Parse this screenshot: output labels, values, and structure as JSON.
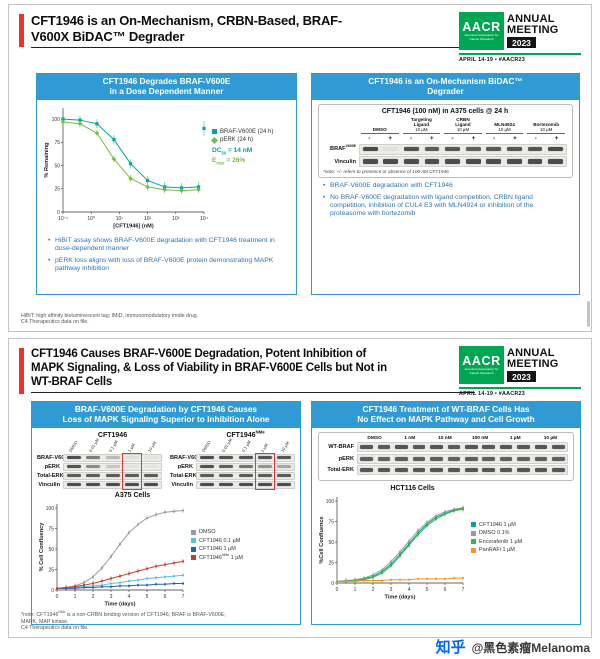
{
  "logo": {
    "acronym": "AACR",
    "org": "American Association for Cancer Research",
    "annual": "ANNUAL",
    "meeting": "MEETING",
    "year": "2023",
    "date": "APRIL 14-19 • #AACR23"
  },
  "watermark": {
    "brand": "知乎",
    "handle": "@黑色素瘤Melanoma"
  },
  "slide1": {
    "title_lines": [
      "CFT1946 is an On-Mechanism, CRBN-Based, BRAF-",
      "V600X BiDAC™ Degrader"
    ],
    "left_panel": {
      "header_lines": [
        "CFT1946 Degrades BRAF-V600E",
        "in a Dose Dependent Manner"
      ],
      "bullets": [
        "HiBiT assay shows BRAF-V600E degradation with CFT1946 treatment in dose-dependent manner",
        "pERK loss aligns with loss of BRAF-V600E protein demonstrating MAPK pathway inhibition"
      ]
    },
    "right_panel": {
      "header_lines": [
        "CFT1946 is an On-Mechanism BiDAC™",
        "Degrader"
      ],
      "blot_title": "CFT1946 (100 nM) in A375 cells @ 24 h",
      "note": "*note: +/- refers to presence or absence of 100 nM CFT1946",
      "bullets": [
        "BRAF-V600E degradation with CFT1946",
        "No BRAF-V600E degradation with ligand competition, CRBN ligand competition, inhibition of CUL4 E3 with MLN4924 or inhibition of the proteasome with bortezomib"
      ]
    },
    "footnote_lines": [
      "HiBiT: high affinity bioluminescent tag; IMiD, immunomodulatory imide drug.",
      "C4 Therapeutics data on file."
    ]
  },
  "slide2": {
    "title_lines": [
      "CFT1946 Causes BRAF-V600E Degradation, Potent Inhibition of",
      "MAPK Signaling, & Loss of Viability in BRAF-V600E Cells but Not in",
      "WT-BRAF Cells"
    ],
    "left_panel": {
      "header_lines": [
        "BRAF-V600E Degradation by CFT1946 Causes",
        "Loss of MAPK Signaling Superior to Inhibition Alone"
      ],
      "chart_title": "A375 Cells"
    },
    "right_panel": {
      "header_lines": [
        "CFT1946 Treatment of WT-BRAF Cells Has",
        "No Effect on MAPK Pathway and Cell Growth"
      ],
      "chart_title": "HCT116 Cells"
    },
    "footnote_lines": [
      "*note: CFT1946^{NMe} is a non-CRBN binding version of CFT1946; BRAF is BRAF-V600E;",
      "MAPK, MAP kinase.",
      "C4 Therapeutics data on file."
    ]
  },
  "blots": {
    "mechanism": {
      "groups": [
        {
          "lines": [
            "DMSO"
          ],
          "sub": ""
        },
        {
          "lines": [
            "Targeting",
            "Ligand"
          ],
          "sub": "10 µM"
        },
        {
          "lines": [
            "CRBN",
            "Ligand"
          ],
          "sub": "10 µM"
        },
        {
          "lines": [
            "MLN4924"
          ],
          "sub": "10 µM"
        },
        {
          "lines": [
            "Bortezomib"
          ],
          "sub": "10 µM"
        }
      ],
      "signs": [
        "-",
        "+",
        "-",
        "+",
        "-",
        "+",
        "-",
        "+",
        "-",
        "+"
      ],
      "rows": [
        {
          "label": "BRAF^{V600E}",
          "bands": [
            0.92,
            0.06,
            0.88,
            0.82,
            0.86,
            0.8,
            0.84,
            0.86,
            0.86,
            0.9
          ]
        },
        {
          "label": "Vinculin",
          "bands": [
            0.9,
            0.9,
            0.9,
            0.9,
            0.9,
            0.9,
            0.9,
            0.9,
            0.9,
            0.9
          ]
        }
      ]
    },
    "cft1946": {
      "title": "CFT1946",
      "lane_labels": [
        "DMSO",
        "0.01 µM",
        "0.1 µM",
        "1 µM",
        "10 µM"
      ],
      "highlight": 3,
      "rows": [
        {
          "label": "BRAF-V600E",
          "bands": [
            0.9,
            0.62,
            0.28,
            0.07,
            0.05
          ]
        },
        {
          "label": "pERK",
          "bands": [
            0.88,
            0.55,
            0.2,
            0.05,
            0.04
          ]
        },
        {
          "label": "Total-ERK",
          "bands": [
            0.82,
            0.82,
            0.82,
            0.82,
            0.82
          ]
        },
        {
          "label": "Vinculin",
          "bands": [
            0.9,
            0.9,
            0.9,
            0.9,
            0.9
          ]
        }
      ]
    },
    "cft1946nme": {
      "title": "CFT1946^{NMe}",
      "lane_labels": [
        "DMSO",
        "0.01 µM",
        "0.1 µM",
        "1 µM",
        "10 µM"
      ],
      "highlight": 3,
      "rows": [
        {
          "label": "BRAF-V600E",
          "bands": [
            0.9,
            0.88,
            0.87,
            0.86,
            0.85
          ]
        },
        {
          "label": "pERK",
          "bands": [
            0.88,
            0.8,
            0.68,
            0.5,
            0.38
          ]
        },
        {
          "label": "Total-ERK",
          "bands": [
            0.82,
            0.82,
            0.82,
            0.82,
            0.82
          ]
        },
        {
          "label": "Vinculin",
          "bands": [
            0.9,
            0.9,
            0.9,
            0.9,
            0.9
          ]
        }
      ]
    },
    "wtbraf": {
      "conc_labels": [
        "DMSO",
        "1 nM",
        "10 nM",
        "100 nM",
        "1 µM",
        "10 µM"
      ],
      "rows": [
        {
          "label": "WT-BRAF",
          "bands": [
            0.85,
            0.83,
            0.86,
            0.84,
            0.85,
            0.83,
            0.86,
            0.84,
            0.85,
            0.84,
            0.85,
            0.84
          ]
        },
        {
          "label": "pERK",
          "bands": [
            0.8,
            0.79,
            0.81,
            0.8,
            0.8,
            0.79,
            0.81,
            0.8,
            0.8,
            0.79,
            0.8,
            0.8
          ]
        },
        {
          "label": "Total-ERK",
          "bands": [
            0.85,
            0.85,
            0.85,
            0.85,
            0.85,
            0.85,
            0.85,
            0.85,
            0.85,
            0.85,
            0.85,
            0.85
          ]
        }
      ]
    }
  },
  "chart_data": [
    {
      "id": "dose",
      "type": "scatter",
      "title": "",
      "xlabel": "[CFT1946] (nM)",
      "ylabel": "% Remaining",
      "xscale": "log",
      "xlim": [
        0.1,
        10000
      ],
      "ylim": [
        0,
        112
      ],
      "yticks": [
        0,
        25,
        50,
        75,
        100
      ],
      "xticks": [
        0.1,
        1,
        10,
        100,
        1000,
        10000
      ],
      "xtick_labels": [
        "10⁻¹",
        "10⁰",
        "10¹",
        "10²",
        "10³",
        "10⁴"
      ],
      "series": [
        {
          "name": "BRAF-V600E (24 h)",
          "color": "#00A79D",
          "marker": "square",
          "err": 5,
          "x": [
            0.1,
            0.4,
            1.6,
            6.4,
            25,
            100,
            400,
            1600,
            6400
          ],
          "y": [
            100,
            99,
            95,
            78,
            52,
            34,
            27,
            26,
            27
          ],
          "iso": {
            "x": 10000,
            "y": 90,
            "err": 8
          }
        },
        {
          "name": "pERK (24 h)",
          "color": "#76BC43",
          "marker": "diamond",
          "err": 4,
          "x": [
            0.1,
            0.4,
            1.6,
            6.4,
            25,
            100,
            400,
            1600,
            6400
          ],
          "y": [
            97,
            95,
            85,
            57,
            36,
            27,
            24,
            23,
            24
          ]
        }
      ],
      "annotations": [
        {
          "text": "DC_{50} = 14 nM",
          "color": "#00A79D"
        },
        {
          "text": "E_{max} = 26%",
          "color": "#76BC43"
        }
      ]
    },
    {
      "id": "a375",
      "type": "line",
      "title": "A375 Cells",
      "xlabel": "Time (days)",
      "ylabel": "% Cell Confluency",
      "xscale": "linear",
      "xlim": [
        0,
        7
      ],
      "ylim": [
        0,
        105
      ],
      "yticks": [
        0,
        25,
        50,
        75,
        100
      ],
      "xticks": [
        0,
        1,
        2,
        3,
        4,
        5,
        6,
        7
      ],
      "series": [
        {
          "name": "DMSO",
          "color": "#9B9B9B",
          "marker": "circle",
          "err": 3,
          "x": [
            0,
            0.5,
            1,
            1.5,
            2,
            2.5,
            3,
            3.5,
            4,
            4.5,
            5,
            5.5,
            6,
            6.5,
            7
          ],
          "y": [
            2,
            3,
            5,
            9,
            16,
            27,
            41,
            56,
            70,
            80,
            88,
            92,
            95,
            96,
            97
          ]
        },
        {
          "name": "CFT1946 0.1 µM",
          "color": "#56C2E1",
          "marker": "circle",
          "err": 2,
          "x": [
            0,
            0.5,
            1,
            1.5,
            2,
            2.5,
            3,
            3.5,
            4,
            4.5,
            5,
            5.5,
            6,
            6.5,
            7
          ],
          "y": [
            2,
            2,
            3,
            4,
            5,
            6,
            8,
            9,
            11,
            12,
            14,
            15,
            16,
            17,
            18
          ]
        },
        {
          "name": "CFT1946 1 µM",
          "color": "#2B5FAC",
          "marker": "circle",
          "err": 2,
          "x": [
            0,
            0.5,
            1,
            1.5,
            2,
            2.5,
            3,
            3.5,
            4,
            4.5,
            5,
            5.5,
            6,
            6.5,
            7
          ],
          "y": [
            2,
            2,
            2,
            3,
            3,
            4,
            4,
            5,
            5,
            6,
            6,
            7,
            7,
            8,
            8
          ]
        },
        {
          "name": "CFT1946^{NMe} 1 µM",
          "color": "#C23B2E",
          "marker": "circle",
          "err": 3,
          "x": [
            0,
            0.5,
            1,
            1.5,
            2,
            2.5,
            3,
            3.5,
            4,
            4.5,
            5,
            5.5,
            6,
            6.5,
            7
          ],
          "y": [
            2,
            3,
            4,
            6,
            8,
            11,
            14,
            17,
            20,
            23,
            26,
            29,
            31,
            33,
            35
          ]
        }
      ]
    },
    {
      "id": "hct116",
      "type": "line",
      "title": "HCT116 Cells",
      "xlabel": "Time (days)",
      "ylabel": "%Cell Confluence",
      "xscale": "linear",
      "xlim": [
        0,
        7
      ],
      "ylim": [
        0,
        105
      ],
      "yticks": [
        0,
        25,
        50,
        75,
        100
      ],
      "xticks": [
        0,
        1,
        2,
        3,
        4,
        5,
        6,
        7
      ],
      "series": [
        {
          "name": "CFT1946 1 µM",
          "color": "#00A79D",
          "marker": "circle",
          "err": 3,
          "x": [
            0,
            0.5,
            1,
            1.5,
            2,
            2.5,
            3,
            3.5,
            4,
            4.5,
            5,
            5.5,
            6,
            6.5,
            7
          ],
          "y": [
            2,
            2,
            3,
            5,
            8,
            14,
            23,
            35,
            48,
            61,
            72,
            80,
            85,
            89,
            91
          ]
        },
        {
          "name": "DMSO 0.1%",
          "color": "#9B9B9B",
          "marker": "circle",
          "err": 3,
          "x": [
            0,
            0.5,
            1,
            1.5,
            2,
            2.5,
            3,
            3.5,
            4,
            4.5,
            5,
            5.5,
            6,
            6.5,
            7
          ],
          "y": [
            2,
            3,
            4,
            6,
            10,
            16,
            26,
            38,
            51,
            64,
            74,
            82,
            87,
            90,
            92
          ]
        },
        {
          "name": "Encorafenib 1 µM",
          "color": "#3AB54A",
          "marker": "circle",
          "err": 3,
          "x": [
            0,
            0.5,
            1,
            1.5,
            2,
            2.5,
            3,
            3.5,
            4,
            4.5,
            5,
            5.5,
            6,
            6.5,
            7
          ],
          "y": [
            2,
            2,
            3,
            4,
            7,
            12,
            21,
            33,
            46,
            59,
            70,
            78,
            84,
            88,
            90
          ]
        },
        {
          "name": "PanRAFi 1 µM",
          "color": "#F7941D",
          "marker": "circle",
          "err": 1,
          "x": [
            0,
            0.5,
            1,
            1.5,
            2,
            2.5,
            3,
            3.5,
            4,
            4.5,
            5,
            5.5,
            6,
            6.5,
            7
          ],
          "y": [
            2,
            2,
            2,
            3,
            3,
            3,
            4,
            4,
            4,
            5,
            5,
            5,
            5,
            6,
            6
          ]
        }
      ]
    }
  ]
}
